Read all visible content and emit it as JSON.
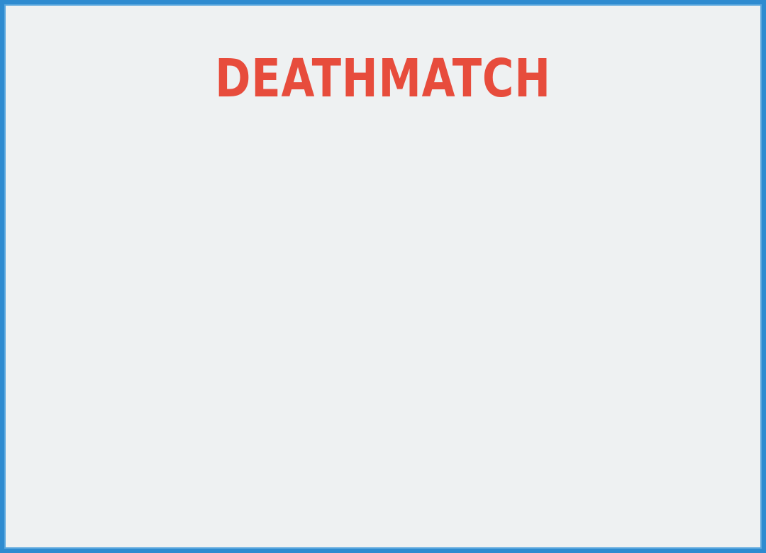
{
  "game": {
    "title": "DEATHMATCH"
  },
  "colors": {
    "title": "#e74c3c",
    "frame_border": "#2e8bd0",
    "background": "#eef1f2"
  }
}
